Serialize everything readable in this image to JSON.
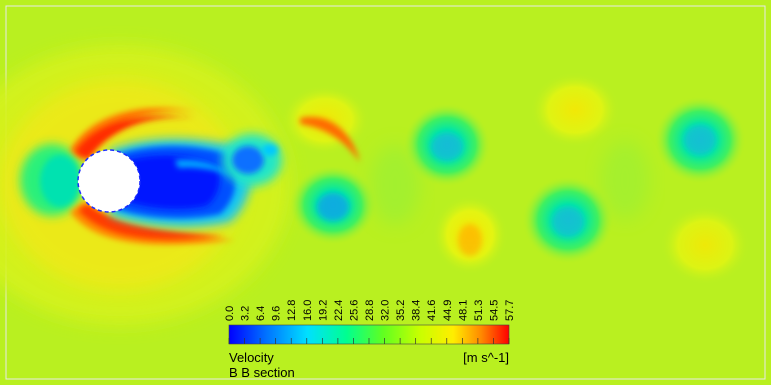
{
  "legend": {
    "ticks": [
      "0.0",
      "3.2",
      "6.4",
      "9.6",
      "12.8",
      "16.0",
      "19.2",
      "22.4",
      "25.6",
      "28.8",
      "32.0",
      "35.2",
      "38.4",
      "41.6",
      "44.9",
      "48.1",
      "51.3",
      "54.5",
      "57.7"
    ],
    "variable": "Velocity",
    "units": "[m s^-1]",
    "location": "B B section"
  },
  "colors": {
    "background": "#b9f020",
    "colormap": [
      "#0000ff",
      "#0070ff",
      "#00e0ff",
      "#00ff90",
      "#60ff20",
      "#c8ff00",
      "#ffee00",
      "#ff8a00",
      "#ff0000"
    ]
  }
}
